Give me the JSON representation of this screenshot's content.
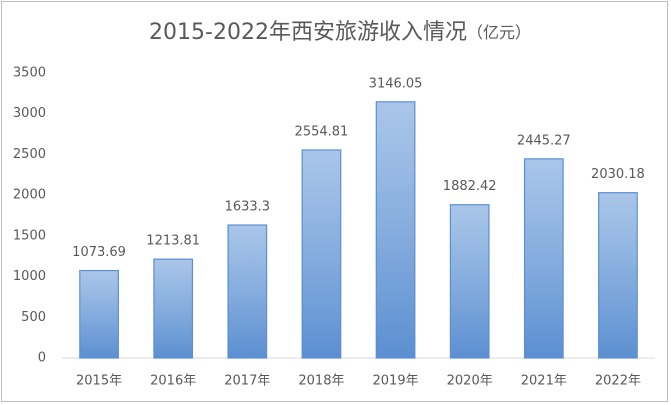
{
  "chart_data": {
    "type": "bar",
    "title": "2015-2022年西安旅游收入情况",
    "unit": "（亿元）",
    "categories": [
      "2015年",
      "2016年",
      "2017年",
      "2018年",
      "2019年",
      "2020年",
      "2021年",
      "2022年"
    ],
    "values": [
      1073.69,
      1213.81,
      1633.3,
      2554.81,
      3146.05,
      1882.42,
      2445.27,
      2030.18
    ],
    "color": "#8db3e2",
    "edgecolor": "#5b8fd1",
    "ylim": [
      0,
      3500
    ],
    "yticks": [
      0,
      500,
      1000,
      1500,
      2000,
      2500,
      3000,
      3500
    ],
    "grid": false
  }
}
